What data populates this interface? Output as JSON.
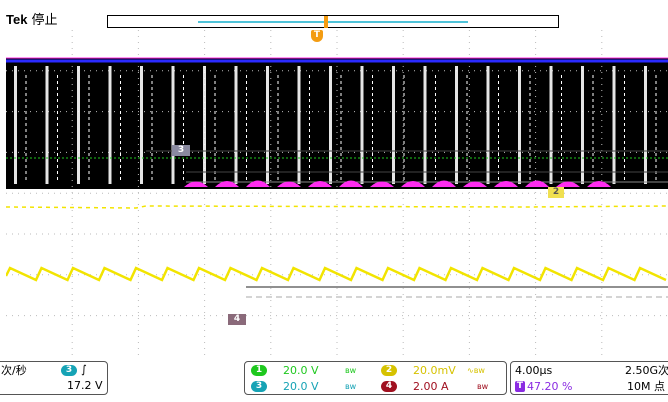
{
  "header": {
    "brand": "Tek",
    "status": "停止"
  },
  "trigger": {
    "rate_label": "次/秒",
    "source": "3",
    "slope_glyph": "∫",
    "level": "17.2 V"
  },
  "channels": [
    {
      "num": "1",
      "scale": "20.0 V",
      "coupling_icon": "bandwidth-limit-icon",
      "coupling": "ʙ𝗐",
      "color": "#1ec81e"
    },
    {
      "num": "2",
      "scale": "20.0mV",
      "coupling_icon": "ac-coupling-icon",
      "coupling": "∿ʙ𝗐",
      "color": "#d6c200"
    },
    {
      "num": "3",
      "scale": "20.0 V",
      "coupling_icon": "bandwidth-limit-icon",
      "coupling": "ʙ𝗐",
      "color": "#16a3b5"
    },
    {
      "num": "4",
      "scale": "2.00 A",
      "coupling_icon": "bandwidth-limit-icon",
      "coupling": "ʙ𝗐",
      "color": "#a01020"
    }
  ],
  "timebase": {
    "scale": "4.00μs",
    "sample_rate": "2.50G次",
    "trigger_pos_label": "T",
    "trigger_pos": "47.20 %",
    "record_length": "10M 点"
  },
  "markers": {
    "trigger": "T",
    "ch3": "3",
    "ch2": "2",
    "ch4": "4"
  },
  "colors": {
    "ch1": "#1ec81e",
    "ch2": "#f2e400",
    "ch3": "#2a2aff",
    "ch4": "#ff2cf0",
    "trigger": "#f39c12",
    "background": "#ffffff"
  }
}
